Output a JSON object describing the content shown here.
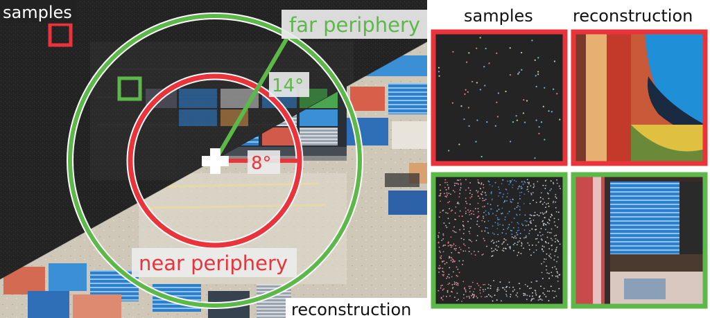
{
  "main_figure": {
    "label_samples": "samples",
    "label_reconstruction": "reconstruction",
    "label_far_periphery": "far periphery",
    "label_near_periphery": "near periphery",
    "angle_far": "14°",
    "angle_near": "8°"
  },
  "insets": {
    "header_samples": "samples",
    "header_reconstruction": "reconstruction"
  },
  "colors": {
    "near_ring": "#e8343a",
    "far_ring": "#5db84a",
    "dark_bg": "#222222",
    "sky_blue": "#2a8fd6"
  }
}
